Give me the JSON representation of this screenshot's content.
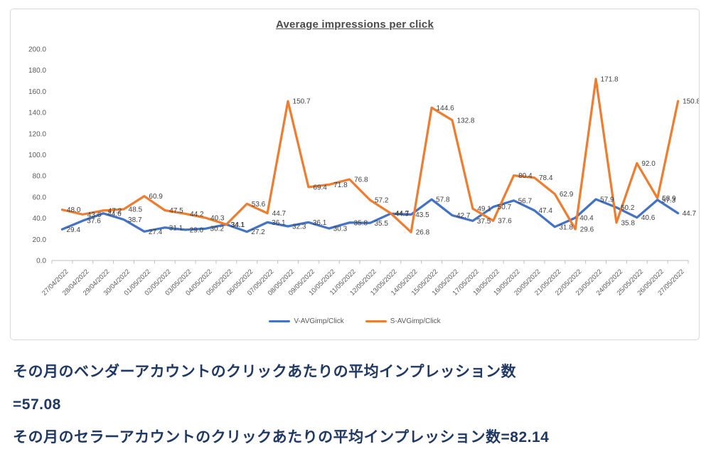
{
  "chart_data": {
    "type": "line",
    "title": "Average impressions per click",
    "categories": [
      "27/04/2022",
      "28/04/2022",
      "29/04/2022",
      "30/04/2022",
      "01/05/2022",
      "02/05/2022",
      "03/05/2022",
      "04/05/2022",
      "05/05/2022",
      "06/05/2022",
      "07/05/2022",
      "08/05/2022",
      "09/05/2022",
      "10/05/2022",
      "11/05/2022",
      "12/05/2022",
      "13/05/2022",
      "14/05/2022",
      "15/05/2022",
      "16/05/2022",
      "17/05/2022",
      "18/05/2022",
      "19/05/2022",
      "20/05/2022",
      "21/05/2022",
      "22/05/2022",
      "23/05/2022",
      "24/05/2022",
      "25/05/2022",
      "26/05/2022",
      "27/05/2022"
    ],
    "series": [
      {
        "name": "V-AVGimp/Click",
        "color": "#4472C4",
        "values": [
          29.4,
          37.6,
          44.6,
          38.7,
          27.4,
          31.1,
          29.0,
          30.2,
          34.1,
          27.2,
          36.1,
          32.3,
          36.1,
          30.3,
          35.8,
          35.5,
          44.3,
          43.5,
          57.8,
          42.7,
          37.5,
          50.7,
          56.7,
          47.4,
          31.8,
          40.4,
          57.9,
          50.2,
          40.6,
          57.3,
          44.7
        ]
      },
      {
        "name": "S-AVGimp/Click",
        "color": "#ED7D31",
        "values": [
          48.0,
          43.6,
          47.2,
          48.5,
          60.9,
          47.5,
          44.2,
          40.3,
          34.1,
          53.6,
          44.7,
          150.7,
          69.4,
          71.8,
          76.8,
          57.2,
          44.7,
          26.8,
          144.6,
          132.8,
          49.1,
          37.6,
          80.4,
          78.4,
          62.9,
          29.6,
          171.8,
          35.8,
          92.0,
          58.9,
          150.8
        ]
      }
    ],
    "ylim": [
      0,
      200
    ],
    "ytick_step": 20,
    "y_tick_labels": [
      "0.0",
      "20.0",
      "40.0",
      "60.0",
      "80.0",
      "100.0",
      "120.0",
      "140.0",
      "160.0",
      "180.0",
      "200.0"
    ],
    "grid": false,
    "legend_position": "bottom",
    "data_labels": true
  },
  "summary": {
    "line1": "その月のベンダーアカウントのクリックあたりの平均インプレッション数",
    "line2": "=57.08",
    "line3": "その月のセラーアカウントのクリックあたりの平均インプレッション数=82.14"
  },
  "colors": {
    "series_v": "#4472C4",
    "series_s": "#ED7D31",
    "axis_text": "#595959",
    "data_label_text": "#404040",
    "axis_line": "#BFBFBF",
    "chart_border": "#D9D9D9",
    "summary_text": "#1F3864"
  }
}
